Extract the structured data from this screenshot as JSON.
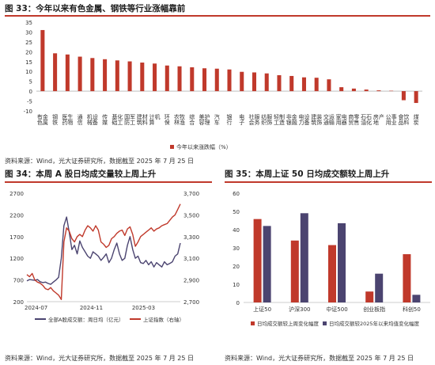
{
  "fig33": {
    "title": "图 33：今年以来有色金属、钢铁等行业涨幅靠前",
    "source": "资料来源：Wind，光大证券研究所，数据截至 2025 年 7 月 25 日",
    "legend": "今年以来涨跌幅（%）"
  },
  "fig34": {
    "title": "图 34：本周 A 股日均成交量较上周上升",
    "source": "资料来源：Wind，光大证券研究所，数据截至 2025 年 7 月 25 日",
    "legend_a": "全部A股成交额：周日均（亿元）",
    "legend_b": "上证指数（右轴）"
  },
  "fig35": {
    "title": "图 35：本周上证 50 日均成交额较上周上升",
    "source": "资料来源：Wind，光大证券研究所，数据截至 2025 年 7 月 25 日",
    "legend_a": "日均成交额较上周变化幅度",
    "legend_b": "日均成交额较2025年以来均值变化幅度"
  },
  "colors": {
    "red": "#c0392b",
    "purple": "#4b4470",
    "title_bar": "#c0392b"
  },
  "chart_data": [
    {
      "type": "bar",
      "categories": [
        "有色金属",
        "钢铁",
        "医药生物",
        "通信",
        "机械设备",
        "传媒",
        "基础化工",
        "国防军工",
        "建筑材料",
        "计算机",
        "环保",
        "农林牧渔",
        "综合",
        "美容护理",
        "汽车",
        "银行",
        "电子",
        "社会服务",
        "纺织服饰",
        "轻工制造",
        "非银金融",
        "电力设备",
        "建筑装饰",
        "交通运输",
        "家用电器",
        "商贸零售",
        "石油石化",
        "房地产",
        "公用事业",
        "食品饮料",
        "煤炭"
      ],
      "values": [
        31,
        19.2,
        18.6,
        17.5,
        16.8,
        16.2,
        15.6,
        15.1,
        14.5,
        14.0,
        13.0,
        12.6,
        12.1,
        11.6,
        11.4,
        11.0,
        9.8,
        9.5,
        9.0,
        8.1,
        7.7,
        7.0,
        6.8,
        6.0,
        2.0,
        1.3,
        0.8,
        0.4,
        0.2,
        -4.6,
        -6.0
      ],
      "ylim": [
        -10,
        35
      ],
      "yticks": [
        "35",
        "30",
        "25",
        "20",
        "15",
        "10",
        "5",
        "0",
        "-5",
        "-10"
      ],
      "series_name": "今年以来涨跌幅（%）"
    },
    {
      "type": "line",
      "x_ticks": [
        "2024-07",
        "2024-11",
        "2025-03"
      ],
      "y_left_ticks": [
        "2700",
        "2200",
        "1700",
        "1200",
        "700",
        "200"
      ],
      "y_right_ticks": [
        "3,700",
        "3,500",
        "3,300",
        "3,100",
        "2,900",
        "2,700"
      ],
      "ylim_left": [
        200,
        2700
      ],
      "ylim_right": [
        2700,
        3700
      ],
      "series": [
        {
          "name": "全部A股成交额：周日均（亿元）",
          "axis": "left",
          "values": [
            680,
            710,
            700,
            690,
            710,
            660,
            640,
            650,
            620,
            600,
            650,
            700,
            760,
            1200,
            1950,
            2150,
            1800,
            1400,
            1500,
            1300,
            1600,
            1450,
            1350,
            1250,
            1200,
            1350,
            1300,
            1250,
            1150,
            1220,
            1300,
            1100,
            1200,
            1400,
            1550,
            1300,
            1150,
            1200,
            1500,
            1700,
            1400,
            1200,
            1250,
            1100,
            1080,
            1150,
            1050,
            1120,
            1000,
            1100,
            1050,
            1000,
            1120,
            1050,
            1080,
            1120,
            1250,
            1300,
            1550
          ]
        },
        {
          "name": "上证指数（右轴）",
          "axis": "right",
          "values": [
            2950,
            2930,
            2960,
            2900,
            2880,
            2870,
            2850,
            2820,
            2810,
            2830,
            2800,
            2780,
            2760,
            2720,
            3250,
            3380,
            3350,
            3280,
            3250,
            3300,
            3320,
            3300,
            3360,
            3400,
            3380,
            3350,
            3400,
            3360,
            3250,
            3230,
            3200,
            3220,
            3280,
            3300,
            3330,
            3350,
            3360,
            3310,
            3370,
            3390,
            3320,
            3210,
            3250,
            3300,
            3320,
            3340,
            3360,
            3380,
            3350,
            3370,
            3380,
            3400,
            3410,
            3420,
            3450,
            3480,
            3500,
            3550,
            3600
          ]
        }
      ]
    },
    {
      "type": "bar",
      "categories": [
        "上证50",
        "沪深300",
        "中证500",
        "创业板指",
        "科创50"
      ],
      "ylim": [
        0,
        60
      ],
      "yticks": [
        "60",
        "50",
        "40",
        "30",
        "20",
        "10",
        "0"
      ],
      "series": [
        {
          "name": "日均成交额较上周变化幅度",
          "values": [
            45.8,
            34.0,
            31.5,
            6.0,
            26.5
          ]
        },
        {
          "name": "日均成交额较2025年以来均值变化幅度",
          "values": [
            42.0,
            49.0,
            43.5,
            15.8,
            4.2
          ]
        }
      ]
    }
  ]
}
